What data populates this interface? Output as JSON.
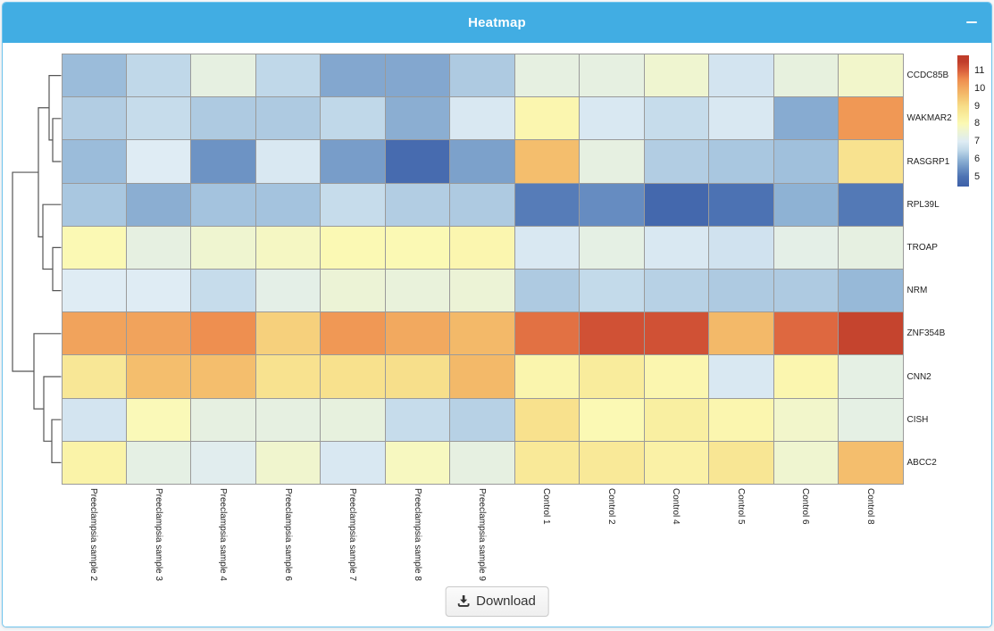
{
  "window": {
    "title": "Heatmap",
    "minimize_glyph": "–"
  },
  "colors": {
    "titlebar": "#41ade3",
    "window_border": "#6fc4ed",
    "grid_line": "#9a9a9a",
    "dendrogram": "#555555",
    "page_bg": "#f5f7f9"
  },
  "chart_data": {
    "type": "heatmap",
    "title": "Heatmap",
    "columns": [
      "Preeclampsia sample 2",
      "Preeclampsia sample 3",
      "Preeclampsia sample 4",
      "Preeclampsia sample 6",
      "Preeclampsia sample 7",
      "Preeclampsia sample 8",
      "Preeclampsia sample 9",
      "Control 1",
      "Control 2",
      "Control 4",
      "Control 5",
      "Control 6",
      "Control 8"
    ],
    "rows": [
      "CCDC85B",
      "WAKMAR2",
      "RASGRP1",
      "RPL39L",
      "TROAP",
      "NRM",
      "ZNF354B",
      "CNN2",
      "CISH",
      "ABCC2"
    ],
    "values": [
      [
        6.1,
        6.5,
        7.3,
        6.5,
        5.8,
        5.8,
        6.3,
        7.3,
        7.3,
        7.6,
        6.8,
        7.35,
        7.7
      ],
      [
        6.35,
        6.6,
        6.3,
        6.3,
        6.5,
        5.9,
        6.9,
        8.1,
        6.9,
        6.6,
        6.9,
        5.85,
        10.3
      ],
      [
        6.1,
        7.0,
        5.5,
        6.9,
        5.65,
        4.8,
        5.7,
        9.6,
        7.3,
        6.35,
        6.25,
        6.15,
        8.8
      ],
      [
        6.25,
        5.9,
        6.2,
        6.2,
        6.6,
        6.35,
        6.3,
        5.15,
        5.4,
        4.7,
        5.0,
        5.95,
        5.1
      ],
      [
        8.0,
        7.3,
        7.6,
        7.8,
        8.0,
        8.0,
        8.1,
        6.9,
        7.25,
        6.9,
        6.75,
        7.2,
        7.3
      ],
      [
        7.0,
        7.0,
        6.6,
        7.2,
        7.5,
        7.4,
        7.5,
        6.3,
        6.55,
        6.4,
        6.3,
        6.3,
        6.05
      ],
      [
        10.1,
        10.1,
        10.45,
        9.25,
        10.3,
        10.0,
        9.7,
        10.8,
        11.2,
        11.2,
        9.7,
        10.9,
        11.4
      ],
      [
        8.65,
        9.6,
        9.6,
        8.8,
        8.85,
        8.9,
        9.7,
        8.15,
        8.5,
        8.1,
        6.9,
        8.1,
        7.25
      ],
      [
        6.8,
        7.95,
        7.3,
        7.3,
        7.35,
        6.6,
        6.4,
        8.85,
        8.0,
        8.4,
        8.1,
        7.7,
        7.25
      ],
      [
        8.25,
        7.25,
        7.1,
        7.65,
        6.9,
        7.85,
        7.3,
        8.6,
        8.6,
        8.3,
        8.7,
        7.6,
        9.6
      ]
    ],
    "value_range": [
      4.45,
      11.85
    ],
    "colorbar_ticks": [
      11,
      10,
      9,
      8,
      7,
      6,
      5
    ],
    "colormap": "blue-yellow-red (RdYlBu reversed)",
    "colormap_anchors": [
      [
        4.5,
        "#3f61a9"
      ],
      [
        5,
        "#4c72b3"
      ],
      [
        5.5,
        "#6d93c4"
      ],
      [
        6,
        "#92b5d6"
      ],
      [
        6.5,
        "#c0d8e9"
      ],
      [
        7,
        "#dfecf4"
      ],
      [
        7.35,
        "#e7f1de"
      ],
      [
        7.7,
        "#f2f6cb"
      ],
      [
        8,
        "#fbf9b4"
      ],
      [
        8.5,
        "#f9ec9c"
      ],
      [
        9,
        "#f7dc87"
      ],
      [
        9.5,
        "#f4c370"
      ],
      [
        10,
        "#f2a95f"
      ],
      [
        10.5,
        "#ee8c4e"
      ],
      [
        11,
        "#da5f3c"
      ],
      [
        11.5,
        "#c03d2a"
      ]
    ],
    "legend_position": "top-right",
    "dendrogram_merges": [
      {
        "a": "WAKMAR2",
        "b": "RASGRP1",
        "x": 56
      },
      {
        "a": "CCDC85B",
        "b": "#0",
        "x": 52
      },
      {
        "a": "TROAP",
        "b": "NRM",
        "x": 56
      },
      {
        "a": "RPL39L",
        "b": "#2",
        "x": 45
      },
      {
        "a": "#1",
        "b": "#3",
        "x": 40
      },
      {
        "a": "CISH",
        "b": "ABCC2",
        "x": 55
      },
      {
        "a": "CNN2",
        "b": "#5",
        "x": 46
      },
      {
        "a": "ZNF354B",
        "b": "#6",
        "x": 35
      },
      {
        "a": "#4",
        "b": "#7",
        "x": 11
      }
    ]
  },
  "footer": {
    "download_label": "Download"
  }
}
